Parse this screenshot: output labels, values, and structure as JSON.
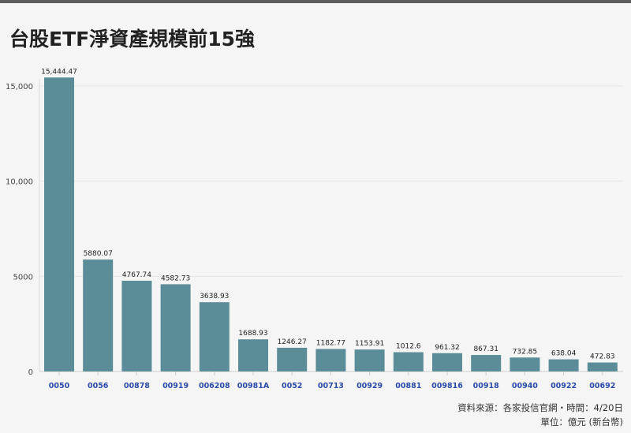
{
  "title": "台股ETF淨資產規模前15強",
  "source": "資料來源：各家投信官網・時間：4/20日",
  "unit": "單位：億元 (新台幣)",
  "chart_data": {
    "type": "bar",
    "title": "台股ETF淨資產規模前15強",
    "categories": [
      "0050",
      "0056",
      "00878",
      "00919",
      "006208",
      "00981A",
      "0052",
      "00713",
      "00929",
      "00881",
      "009816",
      "00918",
      "00940",
      "00922",
      "00692"
    ],
    "values": [
      15444.47,
      5880.07,
      4767.74,
      4582.73,
      3638.93,
      1688.93,
      1246.27,
      1182.77,
      1153.91,
      1012.6,
      961.32,
      867.31,
      732.85,
      638.04,
      472.83
    ],
    "data_labels": [
      "15,444.47",
      "5880.07",
      "4767.74",
      "4582.73",
      "3638.93",
      "1688.93",
      "1246.27",
      "1182.77",
      "1153.91",
      "1012.6",
      "961.32",
      "867.31",
      "732.85",
      "638.04",
      "472.83"
    ],
    "yticks": [
      0,
      5000,
      10000,
      15000
    ],
    "ytick_labels": [
      "0",
      "5000",
      "10,000",
      "15,000"
    ],
    "ylim": [
      0,
      15000
    ],
    "grid": true,
    "colors": {
      "bar": "#5a8d97",
      "category_label": "#2b4ba8",
      "grid": "#e6e6e6"
    }
  }
}
